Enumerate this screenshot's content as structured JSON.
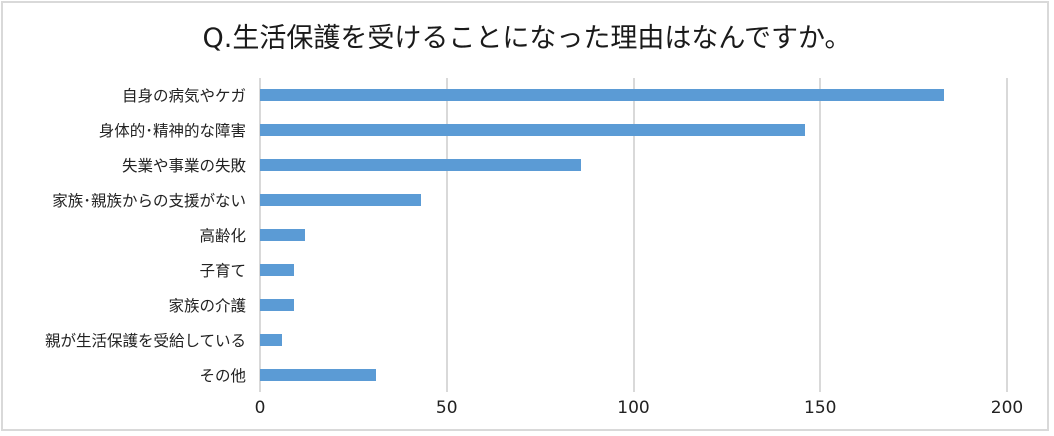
{
  "chart_data": {
    "type": "bar",
    "orientation": "horizontal",
    "title": "Q.生活保護を受けることになった理由はなんですか。",
    "xlabel": "",
    "ylabel": "",
    "categories": [
      "自身の病気やケガ",
      "身体的･精神的な障害",
      "失業や事業の失敗",
      "家族･親族からの支援がない",
      "高齢化",
      "子育て",
      "家族の介護",
      "親が生活保護を受給している",
      "その他"
    ],
    "values": [
      183,
      146,
      86,
      43,
      12,
      9,
      9,
      6,
      31
    ],
    "xlim": [
      0,
      200
    ],
    "xticks": [
      "0",
      "50",
      "100",
      "150",
      "200"
    ],
    "grid": "vertical",
    "legend": "none",
    "bar_color": "#5b9bd5"
  }
}
